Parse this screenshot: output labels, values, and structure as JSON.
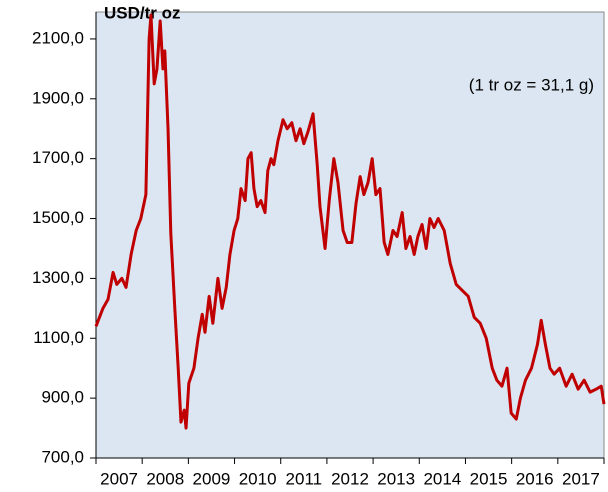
{
  "chart_data": {
    "type": "line",
    "title": "USD/tr oz",
    "annotation": "(1 tr oz = 31,1 g)",
    "categories": [
      "2007",
      "2008",
      "2009",
      "2010",
      "2011",
      "2012",
      "2013",
      "2014",
      "2015",
      "2016",
      "2017"
    ],
    "xlim": [
      2007,
      2018
    ],
    "xticks": [
      2007,
      2008,
      2009,
      2010,
      2011,
      2012,
      2013,
      2014,
      2015,
      2016,
      2017,
      2018
    ],
    "ylim": [
      700,
      2190
    ],
    "yticks": [
      {
        "value": 700,
        "label": "700,0"
      },
      {
        "value": 900,
        "label": "900,0"
      },
      {
        "value": 1100,
        "label": "1100,0"
      },
      {
        "value": 1300,
        "label": "1300,0"
      },
      {
        "value": 1500,
        "label": "1500,0"
      },
      {
        "value": 1700,
        "label": "1700,0"
      },
      {
        "value": 1900,
        "label": "1900,0"
      },
      {
        "value": 2100,
        "label": "2100,0"
      }
    ],
    "grid": false,
    "series": [
      {
        "color": "#c00000",
        "x": [
          2007.0,
          2007.15,
          2007.26,
          2007.37,
          2007.45,
          2007.56,
          2007.65,
          2007.76,
          2007.87,
          2007.97,
          2008.08,
          2008.15,
          2008.19,
          2008.26,
          2008.32,
          2008.39,
          2008.45,
          2008.49,
          2008.56,
          2008.62,
          2008.71,
          2008.78,
          2008.84,
          2008.91,
          2008.95,
          2009.01,
          2009.12,
          2009.21,
          2009.3,
          2009.36,
          2009.45,
          2009.53,
          2009.64,
          2009.73,
          2009.82,
          2009.9,
          2009.99,
          2010.07,
          2010.14,
          2010.23,
          2010.29,
          2010.36,
          2010.42,
          2010.49,
          2010.57,
          2010.66,
          2010.72,
          2010.79,
          2010.85,
          2010.94,
          2011.05,
          2011.14,
          2011.24,
          2011.33,
          2011.42,
          2011.5,
          2011.59,
          2011.7,
          2011.79,
          2011.85,
          2011.96,
          2012.05,
          2012.15,
          2012.24,
          2012.35,
          2012.44,
          2012.54,
          2012.63,
          2012.72,
          2012.8,
          2012.89,
          2012.98,
          2013.06,
          2013.15,
          2013.24,
          2013.32,
          2013.43,
          2013.52,
          2013.63,
          2013.71,
          2013.8,
          2013.89,
          2013.97,
          2014.06,
          2014.15,
          2014.23,
          2014.32,
          2014.41,
          2014.54,
          2014.67,
          2014.8,
          2014.93,
          2015.06,
          2015.19,
          2015.32,
          2015.45,
          2015.58,
          2015.68,
          2015.79,
          2015.9,
          2015.99,
          2016.1,
          2016.19,
          2016.3,
          2016.43,
          2016.56,
          2016.64,
          2016.73,
          2016.83,
          2016.92,
          2017.04,
          2017.18,
          2017.31,
          2017.44,
          2017.57,
          2017.7,
          2017.83,
          2017.94,
          2018.0
        ],
        "values": [
          1140,
          1200,
          1230,
          1320,
          1280,
          1300,
          1270,
          1380,
          1460,
          1500,
          1580,
          2100,
          2180,
          1950,
          2000,
          2160,
          2000,
          2060,
          1800,
          1450,
          1190,
          1000,
          820,
          860,
          800,
          950,
          1000,
          1100,
          1180,
          1120,
          1240,
          1150,
          1300,
          1200,
          1270,
          1380,
          1460,
          1500,
          1600,
          1560,
          1700,
          1720,
          1600,
          1540,
          1560,
          1520,
          1660,
          1700,
          1680,
          1760,
          1830,
          1800,
          1820,
          1760,
          1800,
          1750,
          1790,
          1850,
          1680,
          1540,
          1400,
          1560,
          1700,
          1620,
          1460,
          1420,
          1420,
          1550,
          1640,
          1580,
          1620,
          1700,
          1580,
          1600,
          1420,
          1380,
          1460,
          1440,
          1520,
          1400,
          1440,
          1380,
          1440,
          1480,
          1400,
          1500,
          1470,
          1500,
          1460,
          1350,
          1280,
          1260,
          1240,
          1170,
          1150,
          1100,
          1000,
          960,
          940,
          1000,
          850,
          830,
          900,
          960,
          1000,
          1080,
          1160,
          1080,
          1000,
          980,
          1000,
          940,
          980,
          930,
          960,
          920,
          930,
          940,
          880
        ]
      }
    ]
  }
}
